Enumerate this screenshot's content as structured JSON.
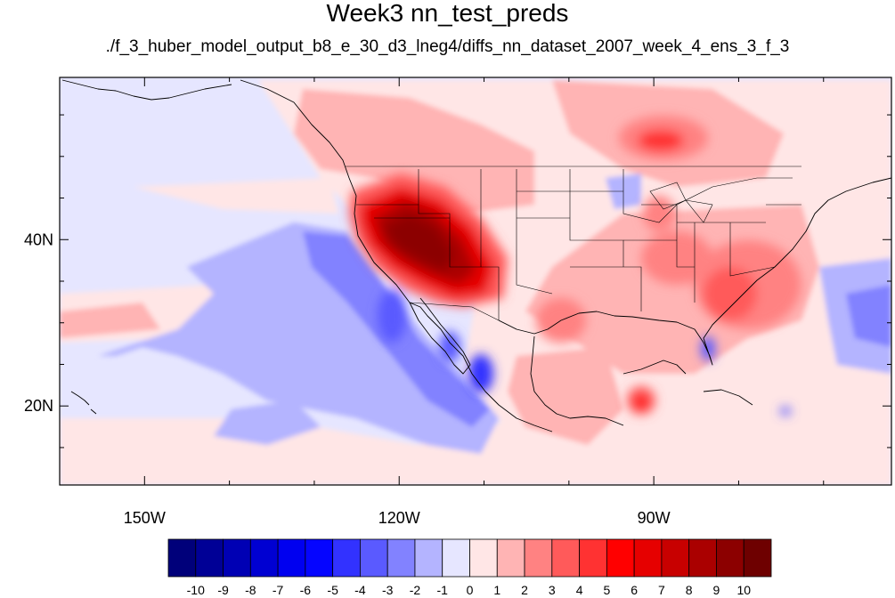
{
  "title": "Week3 nn_test_preds",
  "subtitle": "./f_3_huber_model_output_b8_e_30_d3_lneg4/diffs_nn_dataset_2007_week_4_ens_3_f_3",
  "map": {
    "lon_range": [
      -160,
      -62
    ],
    "lat_range": [
      10.5,
      59.5
    ],
    "x_ticks": [
      {
        "lon": -150,
        "label": "150W"
      },
      {
        "lon": -120,
        "label": "120W"
      },
      {
        "lon": -90,
        "label": "90W"
      }
    ],
    "y_ticks": [
      {
        "lat": 40,
        "label": "40N"
      },
      {
        "lat": 20,
        "label": "20N"
      }
    ],
    "minor_lon": [
      -160,
      -150,
      -140,
      -130,
      -120,
      -110,
      -100,
      -90,
      -80,
      -70
    ],
    "minor_lat": [
      15,
      20,
      25,
      30,
      35,
      40,
      45,
      50,
      55
    ]
  },
  "colorbar": {
    "labels": [
      "-10",
      "-9",
      "-8",
      "-7",
      "-6",
      "-5",
      "-4",
      "-3",
      "-2",
      "-1",
      "0",
      "1",
      "2",
      "3",
      "4",
      "5",
      "6",
      "7",
      "8",
      "9",
      "10"
    ],
    "colors": [
      "#00007a",
      "#000096",
      "#0000b4",
      "#0000d2",
      "#0000f0",
      "#0505ff",
      "#3232ff",
      "#5a5aff",
      "#8282ff",
      "#b4b4ff",
      "#e6e6ff",
      "#ffe6e6",
      "#ffb4b4",
      "#ff8282",
      "#ff5a5a",
      "#ff3232",
      "#ff0000",
      "#e60000",
      "#c80000",
      "#aa0000",
      "#8c0000",
      "#6e0000"
    ]
  }
}
